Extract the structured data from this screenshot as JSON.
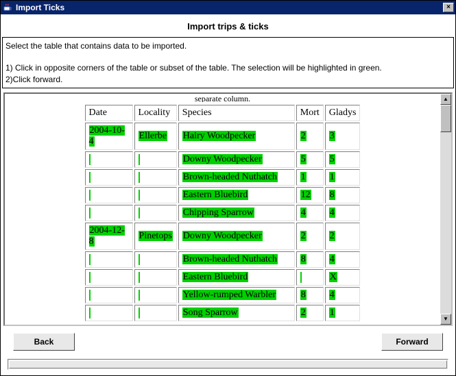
{
  "window": {
    "title": "Import Ticks",
    "close_glyph": "×"
  },
  "header": {
    "subtitle": "Import trips & ticks",
    "instruction_line1": "Select the table that contains data to be imported.",
    "instruction_line2": "1) Click in opposite corners of the table or subset of the table. The selection will be highlighted in green.",
    "instruction_line3": "2)Click forward."
  },
  "content": {
    "partial_text": "separate column.",
    "columns": [
      "Date",
      "Locality",
      "Species",
      "Mort",
      "Gladys"
    ],
    "rows": [
      {
        "date": "2004-10-4",
        "locality": "Ellerbe",
        "species": "Hairy Woodpecker",
        "mort": "2",
        "gladys": "3"
      },
      {
        "date": "",
        "locality": "",
        "species": "Downy Woodpecker",
        "mort": "5",
        "gladys": "5"
      },
      {
        "date": "",
        "locality": "",
        "species": "Brown-headed Nuthatch",
        "mort": "1",
        "gladys": "1"
      },
      {
        "date": "",
        "locality": "",
        "species": "Eastern Bluebird",
        "mort": "12",
        "gladys": "8"
      },
      {
        "date": "",
        "locality": "",
        "species": "Chipping Sparrow",
        "mort": "4",
        "gladys": "4"
      },
      {
        "date": "2004-12-8",
        "locality": "Pinetops",
        "species": "Downy Woodpecker",
        "mort": "2",
        "gladys": "2"
      },
      {
        "date": "",
        "locality": "",
        "species": "Brown-headed Nuthatch",
        "mort": "8",
        "gladys": "4"
      },
      {
        "date": "",
        "locality": "",
        "species": "Eastern Bluebird",
        "mort": "",
        "gladys": "X"
      },
      {
        "date": "",
        "locality": "",
        "species": "Yellow-rumped Warbler",
        "mort": "8",
        "gladys": "4"
      },
      {
        "date": "",
        "locality": "",
        "species": "Song Sparrow",
        "mort": "2",
        "gladys": "1"
      }
    ],
    "highlight_color": "#00d000"
  },
  "buttons": {
    "back": "Back",
    "forward": "Forward"
  },
  "scroll": {
    "up_glyph": "▲",
    "down_glyph": "▼"
  }
}
